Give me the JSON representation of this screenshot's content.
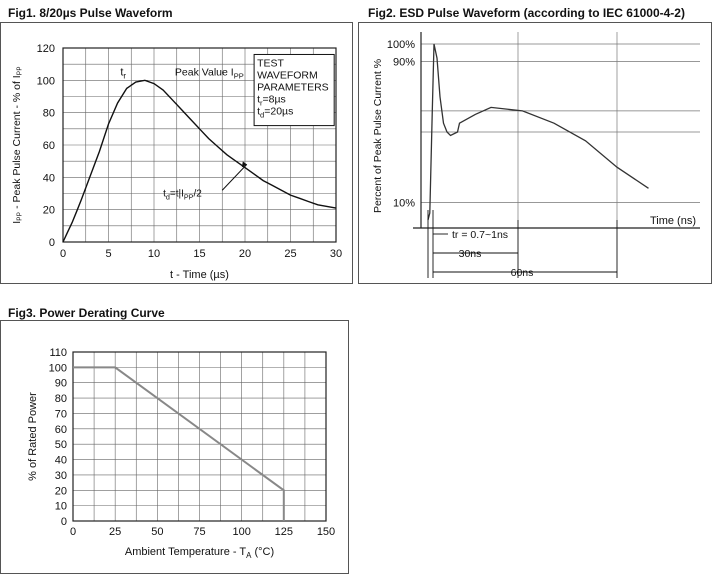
{
  "chart_data": [
    {
      "id": "fig1",
      "type": "line",
      "title": "Fig1.   8/20µs Pulse Waveform",
      "xlabel": "t - Time (µs)",
      "ylabel": "Iₚₚ - Peak Pulse Current - % of Iₚₚ",
      "xlim": [
        0,
        30
      ],
      "ylim": [
        0,
        120
      ],
      "xticks": [
        0,
        5,
        10,
        15,
        20,
        25,
        30
      ],
      "yticks": [
        0,
        20,
        40,
        60,
        80,
        100,
        120
      ],
      "grid": true,
      "series": [
        {
          "x": [
            0,
            0.5,
            1,
            1.5,
            2,
            3,
            4,
            5,
            6,
            7,
            8,
            9,
            10,
            11,
            12,
            13,
            14,
            15,
            16,
            17,
            18,
            19,
            20,
            21,
            22,
            23,
            24,
            25,
            26,
            27,
            28,
            29,
            30
          ],
          "values": [
            0,
            6,
            12,
            19,
            26,
            41,
            56,
            73,
            86,
            95,
            99,
            100,
            98,
            94,
            88,
            82,
            76,
            70,
            64,
            59,
            54,
            50,
            46,
            42,
            38,
            35,
            32,
            29,
            27,
            25,
            23,
            22,
            21
          ]
        }
      ],
      "annotations": {
        "tr_label": "t",
        "tr_sub": "r",
        "peak_label": "Peak Value I",
        "peak_sub": "PP",
        "td_label_prefix": "t",
        "td_sub": "d",
        "td_label_suffix": "=t|I",
        "td_pp": "PP",
        "td_tail": "/2",
        "box_lines": [
          "TEST",
          "WAVEFORM",
          "PARAMETERS"
        ],
        "box_tr": "=8µs",
        "box_td": "=20µs"
      }
    },
    {
      "id": "fig2",
      "type": "line",
      "title": "Fig2. ESD Pulse Waveform (according to IEC 61000-4-2)",
      "xlabel": "Time (ns)",
      "ylabel": "Percent of Peak Pulse Current %",
      "ylim": [
        0,
        100
      ],
      "yticks_labeled": [
        {
          "label": "100%",
          "value": 100
        },
        {
          "label": "90%",
          "value": 90
        },
        {
          "label": "10%",
          "value": 10
        }
      ],
      "grid": true,
      "series": [
        {
          "x": [
            0,
            0.3,
            0.7,
            1,
            1.5,
            2,
            3,
            4,
            5,
            7,
            10,
            15,
            20,
            30,
            40,
            50,
            60,
            70
          ],
          "values": [
            0,
            4,
            60,
            100,
            92,
            70,
            55,
            50,
            48,
            50,
            55,
            60,
            64,
            62,
            55,
            45,
            30,
            18
          ]
        }
      ],
      "annotations": {
        "tr": "tr = 0.7~1ns",
        "t30": "30ns",
        "t60": "60ns"
      }
    },
    {
      "id": "fig3",
      "type": "line",
      "title": "Fig3.   Power Derating Curve",
      "xlabel": "Ambient Temperature  - T",
      "xlabel_sub": "A",
      "xlabel_unit": " (°C)",
      "ylabel": "% of Rated Power",
      "xlim": [
        0,
        150
      ],
      "ylim": [
        0,
        110
      ],
      "xticks": [
        0,
        25,
        50,
        75,
        100,
        125,
        150
      ],
      "yticks": [
        0,
        10,
        20,
        30,
        40,
        50,
        60,
        70,
        80,
        90,
        100,
        110
      ],
      "grid": true,
      "series": [
        {
          "x": [
            0,
            25,
            125,
            125
          ],
          "values": [
            100,
            100,
            20,
            0
          ]
        }
      ]
    }
  ]
}
